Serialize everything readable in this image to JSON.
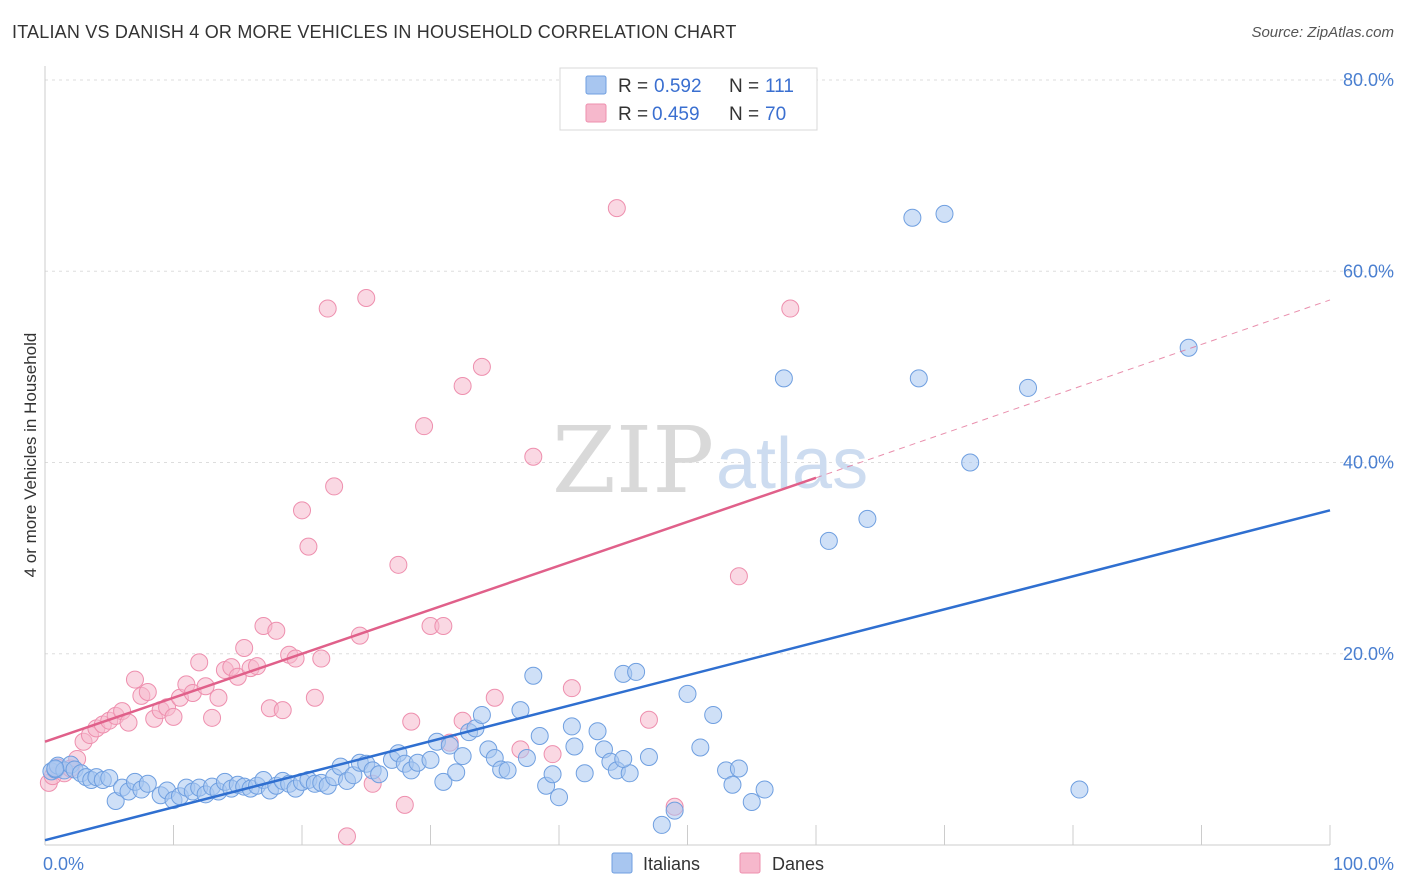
{
  "title": "ITALIAN VS DANISH 4 OR MORE VEHICLES IN HOUSEHOLD CORRELATION CHART",
  "source": "Source: ZipAtlas.com",
  "watermark": {
    "zip": "ZIP",
    "atlas": "atlas"
  },
  "colors": {
    "italians_fill": "#a8c6f0",
    "italians_stroke": "#6f9fe0",
    "italians_line": "#2f6fd0",
    "danes_fill": "#f6b8cc",
    "danes_stroke": "#ee8fae",
    "danes_line": "#e0608a",
    "grid": "#dddddd",
    "tick": "#4a7fd0"
  },
  "legend": {
    "rows": [
      {
        "r_label": "R =",
        "r_value": "0.592",
        "n_label": "N =",
        "n_value": "111"
      },
      {
        "r_label": "R =",
        "r_value": "0.459",
        "n_label": "N =",
        "n_value": "70"
      }
    ]
  },
  "bottom_legend": [
    "Italians",
    "Danes"
  ],
  "chart_data": {
    "type": "scatter",
    "title": "ITALIAN VS DANISH 4 OR MORE VEHICLES IN HOUSEHOLD CORRELATION CHART",
    "xlabel": "",
    "ylabel": "4 or more Vehicles in Household",
    "xlim": [
      0,
      100
    ],
    "ylim": [
      0,
      80
    ],
    "x_tick_labels": [
      "0.0%",
      "100.0%"
    ],
    "y_ticks": [
      20,
      40,
      60,
      80
    ],
    "y_tick_labels": [
      "20.0%",
      "40.0%",
      "60.0%",
      "80.0%"
    ],
    "grid": true,
    "legend_position": "top-center",
    "series": [
      {
        "name": "Italians",
        "r": 0.592,
        "n": 111,
        "trend": {
          "x": [
            0,
            100
          ],
          "y": [
            0.5,
            35.0
          ],
          "style": "solid"
        },
        "points": [
          [
            0.5,
            7.7
          ],
          [
            0.8,
            7.9
          ],
          [
            1.0,
            8.3
          ],
          [
            1.5,
            7.8
          ],
          [
            2.0,
            8.4
          ],
          [
            2.3,
            7.9
          ],
          [
            2.8,
            7.5
          ],
          [
            3.2,
            7.1
          ],
          [
            3.6,
            6.8
          ],
          [
            4.0,
            7.1
          ],
          [
            4.5,
            6.8
          ],
          [
            5.0,
            7.0
          ],
          [
            5.5,
            4.6
          ],
          [
            6.0,
            6.0
          ],
          [
            6.5,
            5.6
          ],
          [
            7.0,
            6.6
          ],
          [
            7.5,
            5.8
          ],
          [
            8.0,
            6.4
          ],
          [
            9.0,
            5.2
          ],
          [
            9.5,
            5.7
          ],
          [
            10.0,
            4.7
          ],
          [
            10.5,
            5.1
          ],
          [
            11.0,
            6.0
          ],
          [
            11.5,
            5.6
          ],
          [
            12.0,
            6.0
          ],
          [
            12.5,
            5.3
          ],
          [
            13.0,
            6.1
          ],
          [
            13.5,
            5.6
          ],
          [
            14.0,
            6.6
          ],
          [
            14.5,
            5.9
          ],
          [
            15.0,
            6.3
          ],
          [
            15.5,
            6.1
          ],
          [
            16.0,
            5.9
          ],
          [
            16.5,
            6.2
          ],
          [
            17.0,
            6.8
          ],
          [
            17.5,
            5.7
          ],
          [
            18.0,
            6.2
          ],
          [
            18.5,
            6.7
          ],
          [
            19.0,
            6.4
          ],
          [
            19.5,
            5.9
          ],
          [
            20.0,
            6.6
          ],
          [
            20.5,
            6.8
          ],
          [
            21.0,
            6.4
          ],
          [
            21.5,
            6.5
          ],
          [
            22.0,
            6.2
          ],
          [
            22.5,
            7.1
          ],
          [
            23.0,
            8.2
          ],
          [
            23.5,
            6.7
          ],
          [
            24.0,
            7.3
          ],
          [
            24.5,
            8.6
          ],
          [
            25.0,
            8.5
          ],
          [
            25.5,
            7.8
          ],
          [
            26.0,
            7.4
          ],
          [
            27.0,
            8.9
          ],
          [
            27.5,
            9.6
          ],
          [
            28.0,
            8.5
          ],
          [
            28.5,
            7.8
          ],
          [
            29.0,
            8.6
          ],
          [
            30.0,
            8.9
          ],
          [
            30.5,
            10.8
          ],
          [
            31.0,
            6.6
          ],
          [
            31.5,
            10.4
          ],
          [
            32.0,
            7.6
          ],
          [
            32.5,
            9.3
          ],
          [
            33.0,
            11.8
          ],
          [
            33.5,
            12.2
          ],
          [
            34.0,
            13.6
          ],
          [
            34.5,
            10.0
          ],
          [
            35.0,
            9.1
          ],
          [
            35.5,
            7.9
          ],
          [
            36.0,
            7.8
          ],
          [
            37.0,
            14.1
          ],
          [
            37.5,
            9.1
          ],
          [
            38.0,
            17.7
          ],
          [
            38.5,
            11.4
          ],
          [
            39.0,
            6.2
          ],
          [
            39.5,
            7.4
          ],
          [
            40.0,
            5.0
          ],
          [
            41.0,
            12.4
          ],
          [
            41.2,
            10.3
          ],
          [
            42.0,
            7.5
          ],
          [
            43.0,
            11.9
          ],
          [
            43.5,
            10.0
          ],
          [
            44.0,
            8.7
          ],
          [
            44.5,
            7.8
          ],
          [
            45.0,
            17.9
          ],
          [
            45.5,
            7.5
          ],
          [
            46.0,
            18.1
          ],
          [
            47.0,
            9.2
          ],
          [
            48.0,
            2.1
          ],
          [
            49.0,
            3.6
          ],
          [
            50.0,
            15.8
          ],
          [
            51.0,
            10.2
          ],
          [
            52.0,
            13.6
          ],
          [
            53.0,
            7.8
          ],
          [
            53.5,
            6.3
          ],
          [
            55.0,
            4.5
          ],
          [
            56.0,
            5.8
          ],
          [
            57.5,
            48.8
          ],
          [
            61.0,
            31.8
          ],
          [
            64.0,
            34.1
          ],
          [
            68.0,
            48.8
          ],
          [
            67.5,
            65.6
          ],
          [
            70.0,
            66.0
          ],
          [
            72.0,
            40.0
          ],
          [
            76.5,
            47.8
          ],
          [
            80.5,
            5.8
          ],
          [
            89.0,
            52.0
          ],
          [
            54.0,
            8.0
          ],
          [
            45.0,
            9.0
          ],
          [
            0.8,
            8.0
          ]
        ]
      },
      {
        "name": "Danes",
        "r": 0.459,
        "n": 70,
        "trend": {
          "x": [
            0,
            60
          ],
          "y": [
            10.8,
            38.4
          ],
          "style": "solid"
        },
        "trend_extension": {
          "x": [
            60,
            100
          ],
          "y": [
            38.4,
            57.0
          ],
          "style": "dashed"
        },
        "points": [
          [
            0.3,
            6.5
          ],
          [
            0.6,
            7.2
          ],
          [
            1.0,
            8.1
          ],
          [
            1.5,
            7.5
          ],
          [
            2.0,
            8.0
          ],
          [
            2.5,
            9.0
          ],
          [
            3.0,
            10.8
          ],
          [
            3.5,
            11.5
          ],
          [
            4.0,
            12.2
          ],
          [
            4.5,
            12.6
          ],
          [
            5.0,
            13.0
          ],
          [
            5.5,
            13.5
          ],
          [
            6.0,
            14.0
          ],
          [
            6.5,
            12.8
          ],
          [
            7.0,
            17.3
          ],
          [
            7.5,
            15.6
          ],
          [
            8.0,
            16.0
          ],
          [
            8.5,
            13.2
          ],
          [
            9.0,
            14.1
          ],
          [
            9.5,
            14.4
          ],
          [
            10.0,
            13.4
          ],
          [
            10.5,
            15.4
          ],
          [
            11.0,
            16.8
          ],
          [
            11.5,
            15.9
          ],
          [
            12.0,
            19.1
          ],
          [
            12.5,
            16.6
          ],
          [
            13.0,
            13.3
          ],
          [
            13.5,
            15.4
          ],
          [
            14.0,
            18.3
          ],
          [
            14.5,
            18.6
          ],
          [
            15.0,
            17.6
          ],
          [
            15.5,
            20.6
          ],
          [
            16.0,
            18.5
          ],
          [
            16.5,
            18.7
          ],
          [
            17.0,
            22.9
          ],
          [
            17.5,
            14.3
          ],
          [
            18.0,
            22.4
          ],
          [
            18.5,
            14.1
          ],
          [
            19.0,
            19.9
          ],
          [
            19.5,
            19.5
          ],
          [
            20.0,
            35.0
          ],
          [
            20.5,
            31.2
          ],
          [
            21.0,
            15.4
          ],
          [
            21.5,
            19.5
          ],
          [
            22.0,
            56.1
          ],
          [
            22.5,
            37.5
          ],
          [
            23.5,
            0.9
          ],
          [
            24.5,
            21.9
          ],
          [
            25.0,
            57.2
          ],
          [
            25.5,
            6.4
          ],
          [
            27.5,
            29.3
          ],
          [
            28.0,
            4.2
          ],
          [
            28.5,
            12.9
          ],
          [
            29.5,
            43.8
          ],
          [
            30.0,
            22.9
          ],
          [
            31.0,
            22.9
          ],
          [
            31.5,
            10.7
          ],
          [
            32.5,
            13.0
          ],
          [
            32.5,
            48.0
          ],
          [
            34.0,
            50.0
          ],
          [
            35.0,
            15.4
          ],
          [
            37.0,
            10.0
          ],
          [
            38.0,
            40.6
          ],
          [
            39.5,
            9.5
          ],
          [
            41.0,
            16.4
          ],
          [
            44.5,
            66.6
          ],
          [
            47.0,
            13.1
          ],
          [
            49.0,
            4.0
          ],
          [
            54.0,
            28.1
          ],
          [
            58.0,
            56.1
          ]
        ]
      }
    ]
  }
}
